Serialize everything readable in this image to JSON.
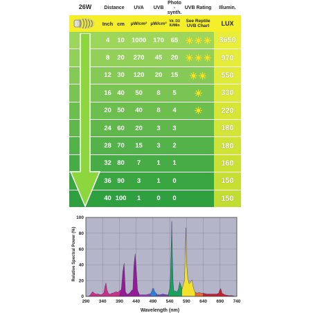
{
  "table": {
    "wattage": "26W",
    "headers": {
      "distance": "Distance",
      "uva": "UVA",
      "uvb": "UVB",
      "photo_line1": "Photo",
      "photo_line2": "-synth.",
      "uvb_rating": "UVB Rating",
      "illumin": "Illumin."
    },
    "units": {
      "inch": "Inch",
      "cm": "cm",
      "uva": "µW/cm²",
      "uvb": "µW/cm²",
      "photo_line1": "Vit. D3",
      "photo_line2": "IU/Min",
      "rating_line1": "See Reptile",
      "rating_line2": "UVB Chart",
      "lux": "LUX"
    },
    "rows": [
      {
        "inch": "4",
        "cm": "10",
        "uva": "1000",
        "uvb": "170",
        "photo": "65",
        "rating_suns": 3,
        "lux": "3650"
      },
      {
        "inch": "8",
        "cm": "20",
        "uva": "270",
        "uvb": "45",
        "photo": "20",
        "rating_suns": 3,
        "lux": "970"
      },
      {
        "inch": "12",
        "cm": "30",
        "uva": "120",
        "uvb": "20",
        "photo": "15",
        "rating_suns": 2,
        "lux": "550"
      },
      {
        "inch": "16",
        "cm": "40",
        "uva": "50",
        "uvb": "8",
        "photo": "5",
        "rating_suns": 1,
        "lux": "330"
      },
      {
        "inch": "20",
        "cm": "50",
        "uva": "40",
        "uvb": "8",
        "photo": "4",
        "rating_suns": 1,
        "lux": "220"
      },
      {
        "inch": "24",
        "cm": "60",
        "uva": "20",
        "uvb": "3",
        "photo": "3",
        "rating_suns": 0,
        "lux": "180"
      },
      {
        "inch": "28",
        "cm": "70",
        "uva": "15",
        "uvb": "3",
        "photo": "2",
        "rating_suns": 0,
        "lux": "180"
      },
      {
        "inch": "32",
        "cm": "80",
        "uva": "7",
        "uvb": "1",
        "photo": "1",
        "rating_suns": 0,
        "lux": "160"
      },
      {
        "inch": "36",
        "cm": "90",
        "uva": "3",
        "uvb": "1",
        "photo": "0",
        "rating_suns": 0,
        "lux": "150"
      },
      {
        "inch": "40",
        "cm": "100",
        "uva": "1",
        "uvb": "0",
        "photo": "0",
        "rating_suns": 0,
        "lux": "150"
      }
    ],
    "colors": {
      "header_bg": "#f4ef29",
      "row_top": "#9ed65c",
      "row_bottom": "#2ea03f",
      "lux_top": "#e9ee3a",
      "lux_bottom": "#c1dd32",
      "sun": "#fbe21a",
      "arrow": "#8ed63e"
    }
  },
  "chart_data": {
    "type": "area",
    "title": "",
    "xlabel": "Wavelength (nm)",
    "ylabel": "Relative Spectral Power (%)",
    "xlim": [
      290,
      740
    ],
    "ylim": [
      0,
      100
    ],
    "xticks": [
      290,
      340,
      390,
      440,
      490,
      540,
      590,
      640,
      690,
      740
    ],
    "yticks": [
      0,
      20,
      40,
      60,
      80,
      100
    ],
    "grid": true,
    "plot_bg": "#b5b5c9",
    "series": [
      {
        "color": "#cc2f8a",
        "x": [
          290,
          297,
          301,
          305,
          310,
          315,
          320,
          327,
          334,
          340,
          344,
          347,
          350,
          353,
          357,
          360,
          364,
          367,
          370,
          375,
          380,
          385,
          390,
          395,
          400,
          404
        ],
        "y": [
          0,
          0,
          1,
          3,
          6,
          4,
          3,
          3,
          2,
          3,
          5,
          13,
          17,
          8,
          4,
          3,
          3,
          4,
          4,
          5,
          6,
          5,
          7,
          8,
          7,
          2
        ]
      },
      {
        "color": "#951c96",
        "x": [
          390,
          396,
          400,
          404,
          406,
          408,
          412,
          416,
          420,
          424,
          427,
          430,
          433,
          437,
          441,
          444,
          448,
          450
        ],
        "y": [
          0,
          10,
          31,
          42,
          24,
          6,
          3,
          3,
          4,
          6,
          8,
          8,
          38,
          54,
          30,
          8,
          4,
          2
        ]
      },
      {
        "color": "#9f34c9",
        "x": [
          448,
          455,
          462,
          470,
          478,
          486,
          490
        ],
        "y": [
          2,
          2,
          2,
          2,
          3,
          3,
          3
        ]
      },
      {
        "color": "#2f7fd2",
        "x": [
          482,
          486,
          489,
          492,
          494,
          497,
          500,
          503
        ],
        "y": [
          3,
          6,
          10,
          10,
          7,
          5,
          4,
          2
        ]
      },
      {
        "color": "#6f43b8",
        "x": [
          500,
          510,
          520,
          530,
          538
        ],
        "y": [
          2,
          2,
          3,
          2,
          2
        ]
      },
      {
        "color": "#17a15a",
        "x": [
          536,
          540,
          542,
          544,
          546,
          548,
          550,
          552,
          555,
          558,
          562,
          566,
          570,
          574,
          578
        ],
        "y": [
          3,
          10,
          24,
          56,
          95,
          52,
          18,
          8,
          6,
          7,
          5,
          10,
          18,
          13,
          8
        ]
      },
      {
        "color": "#f2e22a",
        "x": [
          576,
          580,
          584,
          586,
          588,
          590,
          594,
          598,
          602,
          606,
          610,
          614,
          618
        ],
        "y": [
          8,
          14,
          20,
          48,
          87,
          44,
          22,
          16,
          18,
          21,
          12,
          6,
          5
        ]
      },
      {
        "color": "#e86a2c",
        "x": [
          616,
          622,
          628,
          634,
          640
        ],
        "y": [
          5,
          4,
          5,
          4,
          4
        ]
      },
      {
        "color": "#c8202a",
        "x": [
          640,
          650,
          660,
          670,
          680,
          686,
          689,
          692,
          696,
          704,
          716,
          726,
          736
        ],
        "y": [
          4,
          3,
          3,
          3,
          3,
          4,
          8,
          10,
          4,
          2,
          1,
          1,
          0
        ]
      }
    ]
  }
}
